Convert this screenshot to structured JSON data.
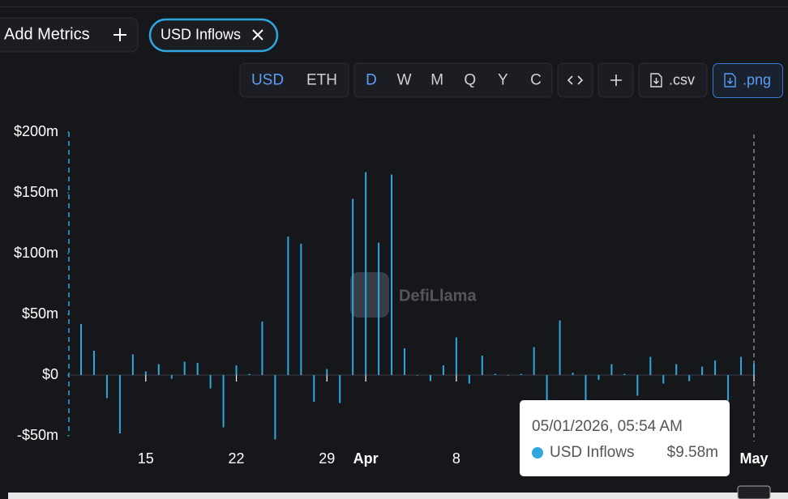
{
  "ui": {
    "add_metrics": "Add Metrics",
    "metric_chip": "USD Inflows",
    "currency_buttons": [
      "USD",
      "ETH"
    ],
    "period_buttons": [
      "D",
      "W",
      "M",
      "Q",
      "Y",
      "C"
    ],
    "csv_button": ".csv",
    "png_button": ".png",
    "watermark": "DefiLlama"
  },
  "chart_data": {
    "type": "bar",
    "categories": [
      "2026-03-10",
      "2026-03-11",
      "2026-03-12",
      "2026-03-13",
      "2026-03-14",
      "2026-03-15",
      "2026-03-16",
      "2026-03-17",
      "2026-03-18",
      "2026-03-19",
      "2026-03-20",
      "2026-03-21",
      "2026-03-22",
      "2026-03-23",
      "2026-03-24",
      "2026-03-25",
      "2026-03-26",
      "2026-03-27",
      "2026-03-28",
      "2026-03-29",
      "2026-03-30",
      "2026-03-31",
      "2026-04-01",
      "2026-04-02",
      "2026-04-03",
      "2026-04-04",
      "2026-04-05",
      "2026-04-06",
      "2026-04-07",
      "2026-04-08",
      "2026-04-09",
      "2026-04-10",
      "2026-04-11",
      "2026-04-12",
      "2026-04-13",
      "2026-04-14",
      "2026-04-15",
      "2026-04-16",
      "2026-04-17",
      "2026-04-18",
      "2026-04-19",
      "2026-04-20",
      "2026-04-21",
      "2026-04-22",
      "2026-04-23",
      "2026-04-24",
      "2026-04-25",
      "2026-04-26",
      "2026-04-27",
      "2026-04-28",
      "2026-04-29",
      "2026-04-30",
      "2026-05-01"
    ],
    "series": [
      {
        "name": "USD Inflows",
        "color": "#2ea7e0",
        "values": [
          42,
          20,
          -19,
          -48,
          17,
          3,
          9,
          -3,
          11,
          10,
          -11,
          -43,
          8,
          1,
          44,
          -53,
          114,
          108,
          -22,
          5,
          -23,
          145,
          167,
          109,
          165,
          22,
          0,
          -5,
          8,
          31,
          -7,
          16,
          1,
          0,
          1,
          23,
          -21,
          45,
          2,
          -21,
          -4,
          9,
          1,
          -17,
          15,
          -7,
          9,
          -5,
          7,
          12,
          -21,
          15,
          9.58
        ]
      }
    ],
    "ylim": [
      -50,
      200
    ],
    "yticks": [
      {
        "value": -50,
        "label": "-$50m"
      },
      {
        "value": 0,
        "label": "$0"
      },
      {
        "value": 50,
        "label": "$50m"
      },
      {
        "value": 100,
        "label": "$100m"
      },
      {
        "value": 150,
        "label": "$150m"
      },
      {
        "value": 200,
        "label": "$200m"
      }
    ],
    "xticks": [
      {
        "value": "2026-03-15",
        "label": "15"
      },
      {
        "value": "2026-03-22",
        "label": "22"
      },
      {
        "value": "2026-03-29",
        "label": "29"
      },
      {
        "value": "2026-04-01",
        "label": "Apr"
      },
      {
        "value": "2026-04-08",
        "label": "8"
      },
      {
        "value": "2026-05-01",
        "label": "May"
      }
    ],
    "tooltip": {
      "date": "05/01/2026, 05:54 AM",
      "series": "USD Inflows",
      "value_label": "$9.58m"
    }
  }
}
